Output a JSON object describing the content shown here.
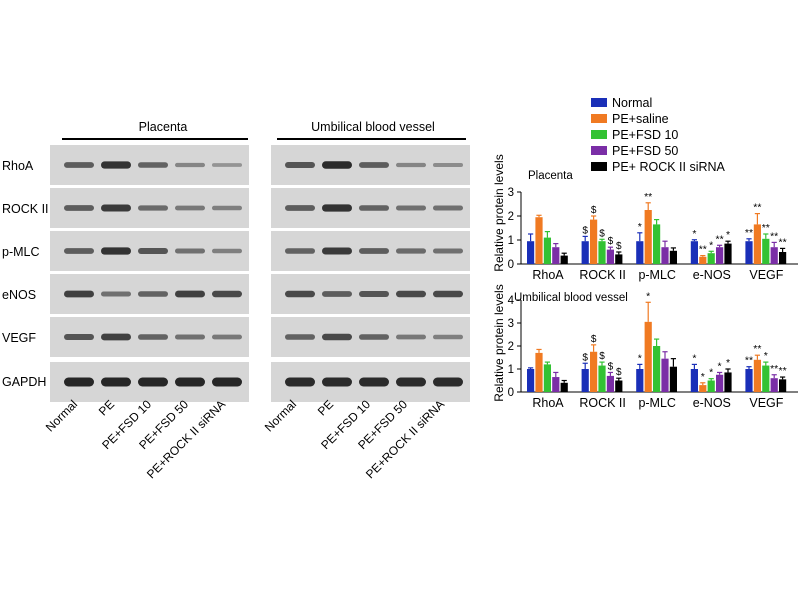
{
  "colors": {
    "normal": "#1a2fb8",
    "pe_saline": "#f07a22",
    "pe_fsd10": "#33c233",
    "pe_fsd50": "#7a2ea6",
    "pe_rock": "#000000",
    "blot_bg": "#d6d6d6",
    "band": "#1e1e1e"
  },
  "blots": {
    "panels": [
      {
        "id": "placenta",
        "title": "Placenta"
      },
      {
        "id": "umbilical",
        "title": "Umbilical blood vessel"
      }
    ],
    "rows": [
      "RhoA",
      "ROCK II",
      "p-MLC",
      "eNOS",
      "VEGF",
      "GAPDH"
    ],
    "lanes": [
      "Normal",
      "PE",
      "PE+FSD 10",
      "PE+FSD 50",
      "PE+ROCK II siRNA"
    ],
    "band_intensity": {
      "placenta": [
        [
          0.55,
          0.85,
          0.5,
          0.25,
          0.15
        ],
        [
          0.55,
          0.8,
          0.45,
          0.35,
          0.3
        ],
        [
          0.55,
          0.85,
          0.6,
          0.4,
          0.3
        ],
        [
          0.75,
          0.4,
          0.5,
          0.75,
          0.7
        ],
        [
          0.6,
          0.75,
          0.5,
          0.4,
          0.35
        ],
        [
          0.95,
          0.95,
          0.95,
          0.95,
          0.95
        ]
      ],
      "umbilical": [
        [
          0.6,
          0.9,
          0.55,
          0.25,
          0.2
        ],
        [
          0.55,
          0.85,
          0.5,
          0.4,
          0.4
        ],
        [
          0.5,
          0.8,
          0.55,
          0.45,
          0.4
        ],
        [
          0.7,
          0.55,
          0.6,
          0.7,
          0.7
        ],
        [
          0.5,
          0.7,
          0.5,
          0.35,
          0.3
        ],
        [
          0.9,
          0.9,
          0.9,
          0.9,
          0.9
        ]
      ]
    }
  },
  "legend": [
    "Normal",
    "PE+saline",
    "PE+FSD 10",
    "PE+FSD 50",
    "PE+ ROCK II siRNA"
  ],
  "chart_data": [
    {
      "type": "bar",
      "title": "Placenta",
      "ylabel": "Relative protein levels",
      "ylim": [
        0,
        3
      ],
      "yticks": [
        0,
        1,
        2,
        3
      ],
      "categories": [
        "RhoA",
        "ROCK II",
        "p-MLC",
        "e-NOS",
        "VEGF"
      ],
      "series": [
        {
          "name": "Normal",
          "values": [
            0.95,
            0.95,
            0.95,
            0.95,
            0.95
          ],
          "errors": [
            0.3,
            0.2,
            0.35,
            0.06,
            0.1
          ]
        },
        {
          "name": "PE+saline",
          "values": [
            1.95,
            1.85,
            2.25,
            0.3,
            1.65
          ],
          "errors": [
            0.08,
            0.15,
            0.3,
            0.05,
            0.45
          ]
        },
        {
          "name": "PE+FSD 10",
          "values": [
            1.1,
            0.95,
            1.65,
            0.45,
            1.05
          ],
          "errors": [
            0.25,
            0.08,
            0.2,
            0.08,
            0.2
          ]
        },
        {
          "name": "PE+FSD 50",
          "values": [
            0.7,
            0.6,
            0.7,
            0.7,
            0.7
          ],
          "errors": [
            0.15,
            0.1,
            0.25,
            0.08,
            0.2
          ]
        },
        {
          "name": "PE+ ROCK II siRNA",
          "values": [
            0.35,
            0.4,
            0.55,
            0.85,
            0.5
          ],
          "errors": [
            0.1,
            0.1,
            0.12,
            0.1,
            0.15
          ]
        }
      ],
      "annotations": [
        [
          "",
          "$",
          "*",
          "*",
          "**"
        ],
        [
          "",
          "$",
          "**",
          "**",
          "**"
        ],
        [
          "",
          "$",
          "",
          "*",
          "**"
        ],
        [
          "",
          "$",
          "",
          "**",
          "**"
        ],
        [
          "",
          "$",
          "",
          "*",
          "**"
        ]
      ]
    },
    {
      "type": "bar",
      "title": "Umbilical blood vessel",
      "ylabel": "Relative protein levels",
      "ylim": [
        0,
        4
      ],
      "yticks": [
        0,
        1,
        2,
        3,
        4
      ],
      "categories": [
        "RhoA",
        "ROCK II",
        "p-MLC",
        "e-NOS",
        "VEGF"
      ],
      "series": [
        {
          "name": "Normal",
          "values": [
            1.0,
            1.0,
            1.0,
            1.0,
            1.0
          ],
          "errors": [
            0.05,
            0.25,
            0.2,
            0.2,
            0.1
          ]
        },
        {
          "name": "PE+saline",
          "values": [
            1.7,
            1.75,
            3.05,
            0.3,
            1.4
          ],
          "errors": [
            0.15,
            0.3,
            0.85,
            0.1,
            0.2
          ]
        },
        {
          "name": "PE+FSD 10",
          "values": [
            1.2,
            1.15,
            2.0,
            0.5,
            1.15
          ],
          "errors": [
            0.1,
            0.15,
            0.3,
            0.08,
            0.15
          ]
        },
        {
          "name": "PE+FSD 50",
          "values": [
            0.65,
            0.7,
            1.45,
            0.75,
            0.6
          ],
          "errors": [
            0.2,
            0.15,
            0.3,
            0.1,
            0.15
          ]
        },
        {
          "name": "PE+ ROCK II siRNA",
          "values": [
            0.4,
            0.5,
            1.1,
            0.85,
            0.55
          ],
          "errors": [
            0.1,
            0.1,
            0.35,
            0.15,
            0.1
          ]
        }
      ],
      "annotations": [
        [
          "",
          "$",
          "*",
          "*",
          "**"
        ],
        [
          "",
          "$",
          "*",
          "*",
          "**"
        ],
        [
          "",
          "$",
          "",
          "*",
          "*"
        ],
        [
          "",
          "$",
          "",
          "*",
          "**"
        ],
        [
          "",
          "$",
          "",
          "*",
          "**"
        ]
      ]
    }
  ]
}
